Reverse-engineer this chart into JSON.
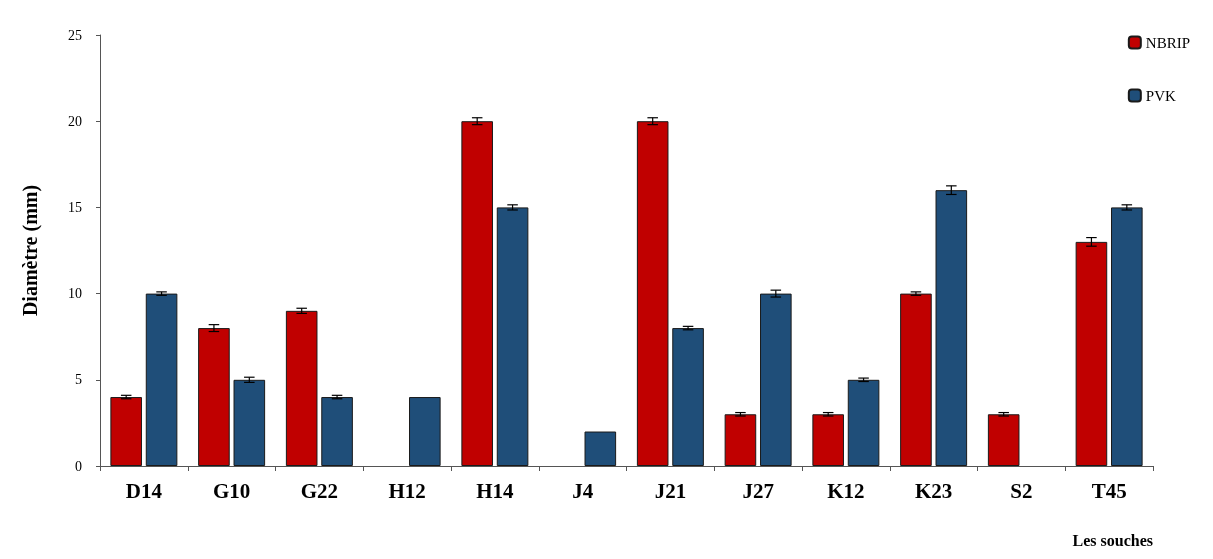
{
  "chart_data": {
    "type": "bar",
    "xlabel": "Les souches",
    "ylabel": "Diamètre (mm)",
    "categories": [
      "D14",
      "G10",
      "G22",
      "H12",
      "H14",
      "J4",
      "J21",
      "J27",
      "K12",
      "K23",
      "S2",
      "T45"
    ],
    "series": [
      {
        "name": "NBRIP",
        "color": "#c00000",
        "values": [
          4,
          8,
          9,
          null,
          20,
          null,
          20,
          3,
          3,
          10,
          3,
          13
        ],
        "errors": [
          0.1,
          0.2,
          0.15,
          null,
          0.2,
          null,
          0.2,
          0.1,
          0.1,
          0.1,
          0.1,
          0.25
        ]
      },
      {
        "name": "PVK",
        "color": "#1f4e79",
        "values": [
          10,
          5,
          4,
          4,
          15,
          2,
          8,
          10,
          5,
          16,
          null,
          15
        ],
        "errors": [
          0.1,
          0.15,
          0.1,
          null,
          0.15,
          null,
          0.1,
          0.2,
          0.1,
          0.25,
          null,
          0.15
        ]
      }
    ],
    "ylim": [
      0,
      25
    ],
    "yticks": [
      0,
      5,
      10,
      15,
      20,
      25
    ],
    "grid": false,
    "legend": "top right"
  }
}
